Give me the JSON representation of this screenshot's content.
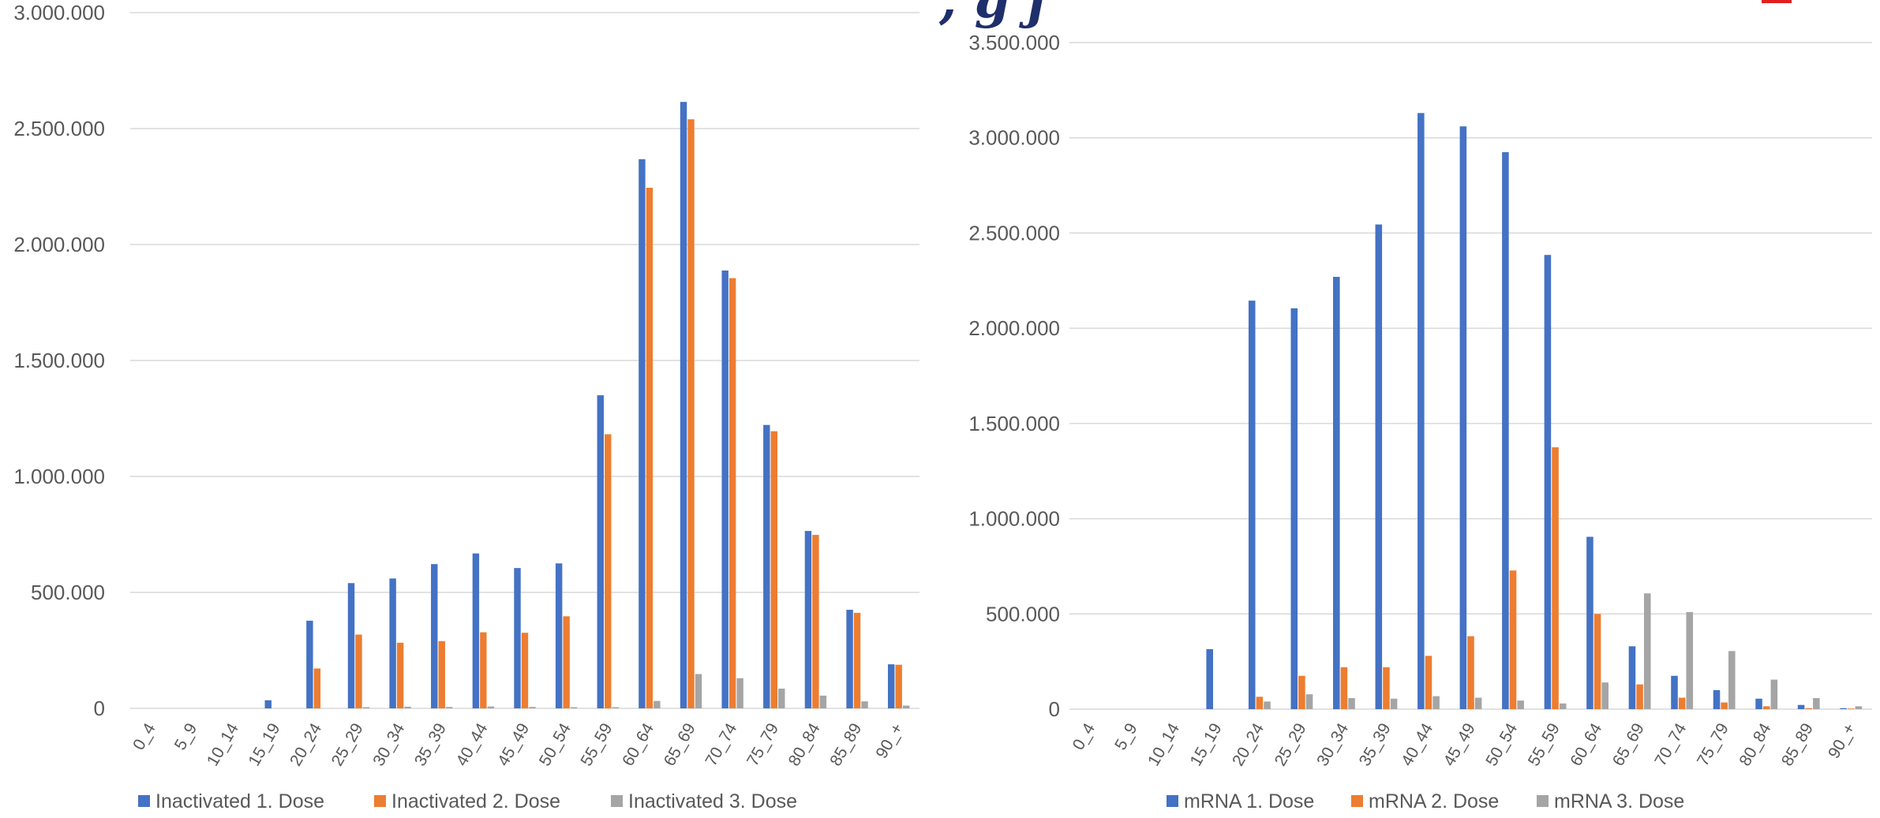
{
  "colors": {
    "dose1": "#4472c4",
    "dose2": "#ed7d31",
    "dose3": "#a5a5a5",
    "grid": "#d9d9d9",
    "text": "#595959",
    "header_fragment": "#1f2f6b",
    "corner_mark": "#e02020"
  },
  "header_fragment_text": ", g j",
  "chart_data": [
    {
      "type": "bar",
      "categories": [
        "0_4",
        "5_9",
        "10_14",
        "15_19",
        "20_24",
        "25_29",
        "30_34",
        "35_39",
        "40_44",
        "45_49",
        "50_54",
        "55_59",
        "60_64",
        "65_69",
        "70_74",
        "75_79",
        "80_84",
        "85_89",
        "90_+"
      ],
      "ylim": [
        0,
        3000000
      ],
      "yticks": [
        0,
        500000,
        1000000,
        1500000,
        2000000,
        2500000,
        3000000
      ],
      "ytick_labels": [
        "0",
        "500.000",
        "1.000.000",
        "1.500.000",
        "2.000.000",
        "2.500.000",
        "3.000.000"
      ],
      "title": "",
      "xlabel": "",
      "ylabel": "",
      "grid": true,
      "legend_position": "bottom",
      "series": [
        {
          "name": "Inactivated 1. Dose",
          "color_key": "dose1",
          "values": [
            0,
            0,
            0,
            35000,
            378000,
            540000,
            560000,
            622000,
            668000,
            605000,
            625000,
            1350000,
            2368000,
            2615000,
            1888000,
            1222000,
            765000,
            425000,
            190000
          ]
        },
        {
          "name": "Inactivated 2. Dose",
          "color_key": "dose2",
          "values": [
            0,
            0,
            0,
            0,
            172000,
            318000,
            283000,
            290000,
            328000,
            326000,
            397000,
            1182000,
            2245000,
            2540000,
            1855000,
            1195000,
            748000,
            412000,
            188000
          ]
        },
        {
          "name": "Inactivated 3. Dose",
          "color_key": "dose3",
          "values": [
            0,
            0,
            0,
            0,
            0,
            5000,
            7000,
            6000,
            8000,
            6000,
            5000,
            5000,
            32000,
            148000,
            130000,
            85000,
            55000,
            30000,
            12000
          ]
        }
      ]
    },
    {
      "type": "bar",
      "categories": [
        "0_4",
        "5_9",
        "10_14",
        "15_19",
        "20_24",
        "25_29",
        "30_34",
        "35_39",
        "40_44",
        "45_49",
        "50_54",
        "55_59",
        "60_64",
        "65_69",
        "70_74",
        "75_79",
        "80_84",
        "85_89",
        "90_+"
      ],
      "ylim": [
        0,
        3500000
      ],
      "yticks": [
        0,
        500000,
        1000000,
        1500000,
        2000000,
        2500000,
        3000000,
        3500000
      ],
      "ytick_labels": [
        "0",
        "500.000",
        "1.000.000",
        "1.500.000",
        "2.000.000",
        "2.500.000",
        "3.000.000",
        "3.500.000"
      ],
      "title": "",
      "xlabel": "",
      "ylabel": "",
      "grid": true,
      "legend_position": "bottom",
      "series": [
        {
          "name": "mRNA 1. Dose",
          "color_key": "dose1",
          "values": [
            0,
            0,
            0,
            315000,
            2145000,
            2105000,
            2270000,
            2545000,
            3130000,
            3060000,
            2925000,
            2385000,
            905000,
            330000,
            175000,
            100000,
            55000,
            22000,
            5000
          ]
        },
        {
          "name": "mRNA 2. Dose",
          "color_key": "dose2",
          "values": [
            0,
            0,
            0,
            0,
            65000,
            175000,
            220000,
            220000,
            280000,
            383000,
            728000,
            1375000,
            500000,
            130000,
            60000,
            35000,
            15000,
            5000,
            3000
          ]
        },
        {
          "name": "mRNA 3. Dose",
          "color_key": "dose3",
          "values": [
            0,
            0,
            0,
            0,
            40000,
            78000,
            58000,
            55000,
            68000,
            60000,
            45000,
            30000,
            140000,
            608000,
            510000,
            305000,
            155000,
            58000,
            15000
          ]
        }
      ]
    }
  ]
}
